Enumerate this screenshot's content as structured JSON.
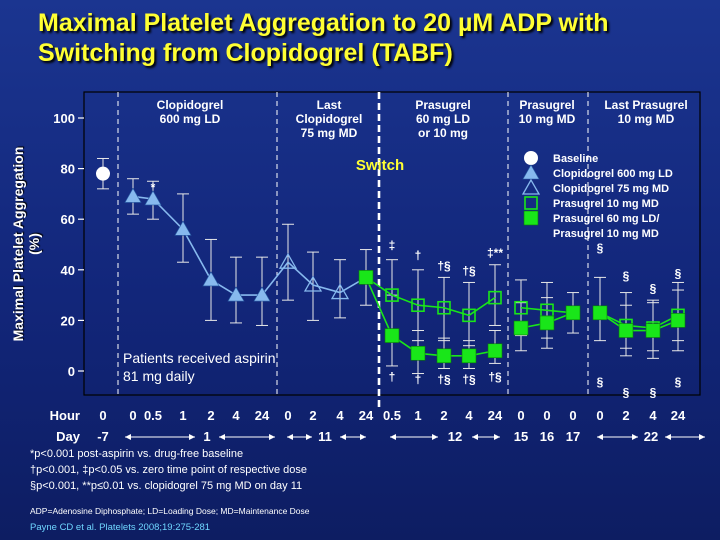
{
  "title": {
    "line1": "Maximal Platelet Aggregation to 20 µM ADP with",
    "line2": "Switching from Clopidogrel (TABF)"
  },
  "colors": {
    "title": "#ffff33",
    "baseline": "#ffffff",
    "clopidogrel": "#87b9ee",
    "prasugrel": "#19e619",
    "switch_text": "#ffff33",
    "note_text": "#6fd6ff"
  },
  "chart_data": {
    "type": "line",
    "title": "Maximal Platelet Aggregation to 20 µM ADP with Switching from Clopidogrel (TABF)",
    "ylabel": "Maximal Platelet Aggregation (%)",
    "ylim": [
      -10,
      110
    ],
    "yticks": [
      0,
      20,
      40,
      60,
      80,
      100
    ],
    "hour_row_label": "Hour",
    "day_row_label": "Day",
    "hours": [
      "0",
      "0",
      "0.5",
      "1",
      "2",
      "4",
      "24",
      "0",
      "2",
      "4",
      "24",
      "0.5",
      "1",
      "2",
      "4",
      "24",
      "0",
      "0",
      "0",
      "0",
      "2",
      "4",
      "24"
    ],
    "days": [
      {
        "label": "-7"
      },
      {
        "label": "1"
      },
      {
        "label": "11"
      },
      {
        "label": "12"
      },
      {
        "label": "15"
      },
      {
        "label": "16"
      },
      {
        "label": "17"
      },
      {
        "label": "22"
      }
    ],
    "phases": [
      {
        "label": "Clopidogrel\n600 mg LD"
      },
      {
        "label": "Last\nClopidogrel\n75 mg MD"
      },
      {
        "label": "Prasugrel\n60 mg LD\nor 10 mg"
      },
      {
        "label": "Prasugrel\n10 mg MD"
      },
      {
        "label": "Last Prasugrel\n10 mg MD"
      }
    ],
    "switch_label": "Switch",
    "series": [
      {
        "name": "Baseline",
        "marker": "circle",
        "segments": [
          [
            {
              "i": 0,
              "y": 78,
              "lo": 72,
              "hi": 84
            }
          ]
        ]
      },
      {
        "name": "Clopidogrel 600 mg LD",
        "marker": "triangle",
        "segments": [
          [
            {
              "i": 1,
              "y": 69,
              "lo": 62,
              "hi": 76
            },
            {
              "i": 2,
              "y": 68,
              "lo": 60,
              "hi": 75
            },
            {
              "i": 3,
              "y": 56,
              "lo": 43,
              "hi": 70
            },
            {
              "i": 4,
              "y": 36,
              "lo": 20,
              "hi": 52
            },
            {
              "i": 5,
              "y": 30,
              "lo": 19,
              "hi": 45
            },
            {
              "i": 6,
              "y": 30,
              "lo": 18,
              "hi": 45
            }
          ]
        ]
      },
      {
        "name": "Clopidogrel 75 mg MD",
        "marker": "triangle-open",
        "segments": [
          [
            {
              "i": 7,
              "y": 43,
              "lo": 28,
              "hi": 58
            },
            {
              "i": 8,
              "y": 34,
              "lo": 20,
              "hi": 47
            },
            {
              "i": 9,
              "y": 31,
              "lo": 21,
              "hi": 44
            }
          ]
        ]
      },
      {
        "name": "Prasugrel 10 mg MD",
        "marker": "square-open",
        "segments": [
          [
            {
              "i": 10,
              "y": 37
            },
            {
              "i": 11,
              "y": 30,
              "lo": 16,
              "hi": 44
            },
            {
              "i": 12,
              "y": 26,
              "lo": 12,
              "hi": 40
            },
            {
              "i": 13,
              "y": 25,
              "lo": 12,
              "hi": 37
            },
            {
              "i": 14,
              "y": 22,
              "lo": 10,
              "hi": 35
            },
            {
              "i": 15,
              "y": 29,
              "lo": 18,
              "hi": 42
            }
          ],
          [
            {
              "i": 16,
              "y": 25,
              "lo": 14,
              "hi": 36
            },
            {
              "i": 17,
              "y": 24,
              "lo": 13,
              "hi": 35
            },
            {
              "i": 18,
              "y": 23
            }
          ],
          [
            {
              "i": 19,
              "y": 23
            },
            {
              "i": 20,
              "y": 18,
              "lo": 9,
              "hi": 31
            },
            {
              "i": 21,
              "y": 17,
              "lo": 8,
              "hi": 28
            },
            {
              "i": 22,
              "y": 22,
              "lo": 12,
              "hi": 35
            }
          ]
        ]
      },
      {
        "name": "Prasugrel 60 mg LD/\nPrasugrel 10 mg MD",
        "marker": "square",
        "segments": [
          [
            {
              "i": 10,
              "y": 37,
              "lo": 26,
              "hi": 48
            },
            {
              "i": 11,
              "y": 14,
              "lo": 2,
              "hi": 30
            },
            {
              "i": 12,
              "y": 7,
              "lo": -1,
              "hi": 16
            },
            {
              "i": 13,
              "y": 6,
              "lo": 1,
              "hi": 13
            },
            {
              "i": 14,
              "y": 6,
              "lo": 1,
              "hi": 12
            },
            {
              "i": 15,
              "y": 8,
              "lo": 3,
              "hi": 16
            }
          ],
          [
            {
              "i": 16,
              "y": 17,
              "lo": 8,
              "hi": 27
            },
            {
              "i": 17,
              "y": 19,
              "lo": 9,
              "hi": 29
            },
            {
              "i": 18,
              "y": 23,
              "lo": 15,
              "hi": 31
            }
          ],
          [
            {
              "i": 19,
              "y": 23,
              "lo": 12,
              "hi": 37
            },
            {
              "i": 20,
              "y": 16,
              "lo": 6,
              "hi": 26
            },
            {
              "i": 21,
              "y": 16,
              "lo": 5,
              "hi": 27
            },
            {
              "i": 22,
              "y": 20,
              "lo": 8,
              "hi": 32
            }
          ]
        ]
      }
    ],
    "annotations": [
      {
        "text": "*",
        "i": 2,
        "y": 71
      },
      {
        "text": "‡",
        "i": 11,
        "y": 48
      },
      {
        "text": "†",
        "i": 12,
        "y": 44
      },
      {
        "text": "†§",
        "i": 13,
        "y": 40
      },
      {
        "text": "†§",
        "i": 14,
        "y": 38
      },
      {
        "text": "‡**",
        "i": 15,
        "y": 45
      },
      {
        "text": "†",
        "i": 11,
        "y": -4
      },
      {
        "text": "†",
        "i": 12,
        "y": -5
      },
      {
        "text": "†§",
        "i": 13,
        "y": -5
      },
      {
        "text": "†§",
        "i": 14,
        "y": -5
      },
      {
        "text": "†§",
        "i": 15,
        "y": -4
      },
      {
        "text": "§",
        "i": 19,
        "y": 47
      },
      {
        "text": "§",
        "i": 20,
        "y": 36
      },
      {
        "text": "§",
        "i": 21,
        "y": 31
      },
      {
        "text": "§",
        "i": 22,
        "y": 37
      },
      {
        "text": "§",
        "i": 19,
        "y": -6
      },
      {
        "text": "§",
        "i": 20,
        "y": -10
      },
      {
        "text": "§",
        "i": 21,
        "y": -10
      },
      {
        "text": "§",
        "i": 22,
        "y": -6
      }
    ],
    "inner_note": "Patients received aspirin\n81 mg daily",
    "legend_position": "right"
  },
  "footnotes": [
    "*p<0.001 post-aspirin vs. drug-free baseline",
    "†p<0.001, ‡p<0.05 vs. zero time point of respective dose",
    "§p<0.001, **p≤0.01 vs. clopidogrel 75 mg MD on day 11"
  ],
  "abbreviations": "ADP=Adenosine Diphosphate; LD=Loading Dose; MD=Maintenance Dose",
  "reference": "Payne CD et al. Platelets 2008;19:275-281"
}
